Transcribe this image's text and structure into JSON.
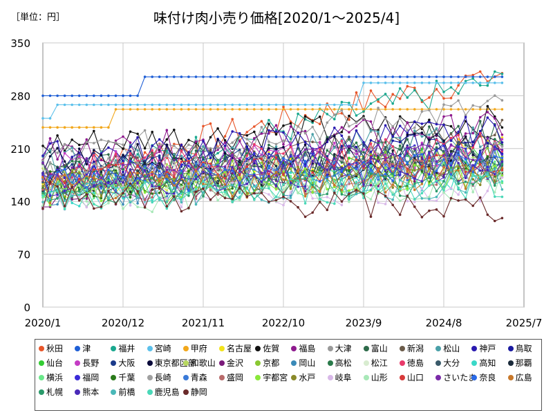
{
  "unit_label": "［単位：円］",
  "title": "味付け肉小売り価格[2020/1～2025/4]",
  "chart_data": {
    "type": "line",
    "title": "味付け肉小売り価格[2020/1～2025/4]",
    "ylabel": "［単位：円］",
    "xlim": [
      "2020/1",
      "2025/7"
    ],
    "ylim": [
      0,
      350
    ],
    "yticks": [
      0,
      70,
      140,
      210,
      280,
      350
    ],
    "xticks": [
      "2020/1",
      "2020/12",
      "2021/11",
      "2022/10",
      "2023/9",
      "2024/8",
      "2025/7"
    ],
    "grid": true,
    "legend_position": "bottom",
    "series": [
      {
        "name": "秋田",
        "color": "#e8562a",
        "base": 175,
        "end": 310
      },
      {
        "name": "津",
        "color": "#1f5fd6",
        "base": 280,
        "end": 305
      },
      {
        "name": "福井",
        "color": "#1aa88f",
        "base": 165,
        "end": 300
      },
      {
        "name": "宮崎",
        "color": "#5bc0eb",
        "base": 250,
        "end": 297
      },
      {
        "name": "甲府",
        "color": "#f2a71b",
        "base": 240,
        "end": 262
      },
      {
        "name": "名古屋",
        "color": "#f2e31b",
        "base": 160,
        "end": 215
      },
      {
        "name": "佐賀",
        "color": "#111111",
        "base": 215,
        "end": 248
      },
      {
        "name": "福島",
        "color": "#8e1a8e",
        "base": 205,
        "end": 240
      },
      {
        "name": "大津",
        "color": "#999999",
        "base": 200,
        "end": 265
      },
      {
        "name": "富山",
        "color": "#2e6b4a",
        "base": 175,
        "end": 230
      },
      {
        "name": "新潟",
        "color": "#6b5b4a",
        "base": 180,
        "end": 230
      },
      {
        "name": "松山",
        "color": "#4aa0a8",
        "base": 190,
        "end": 225
      },
      {
        "name": "神戸",
        "color": "#2a1ab0",
        "base": 200,
        "end": 235
      },
      {
        "name": "鳥取",
        "color": "#1a1aa0",
        "base": 170,
        "end": 220
      },
      {
        "name": "仙台",
        "color": "#33cc33",
        "base": 160,
        "end": 200
      },
      {
        "name": "長野",
        "color": "#c43cc4",
        "base": 190,
        "end": 205
      },
      {
        "name": "大阪",
        "color": "#1a3a8a",
        "base": 185,
        "end": 200
      },
      {
        "name": "東京都区部",
        "color": "#0a0a3a",
        "base": 195,
        "end": 215
      },
      {
        "name": "和歌山",
        "color": "#b8d860",
        "base": 165,
        "end": 190
      },
      {
        "name": "金沢",
        "color": "#7a1a7a",
        "base": 150,
        "end": 185
      },
      {
        "name": "京都",
        "color": "#8ac832",
        "base": 160,
        "end": 195
      },
      {
        "name": "岡山",
        "color": "#3a8ab8",
        "base": 150,
        "end": 180
      },
      {
        "name": "高松",
        "color": "#2a7a4a",
        "base": 175,
        "end": 210
      },
      {
        "name": "松江",
        "color": "#d8ecd0",
        "base": 170,
        "end": 185
      },
      {
        "name": "徳島",
        "color": "#e83a6a",
        "base": 180,
        "end": 215
      },
      {
        "name": "大分",
        "color": "#3a5a6a",
        "base": 155,
        "end": 205
      },
      {
        "name": "高知",
        "color": "#3ad8c8",
        "base": 150,
        "end": 180
      },
      {
        "name": "那覇",
        "color": "#1a2a3a",
        "base": 165,
        "end": 195
      },
      {
        "name": "横浜",
        "color": "#6ae88a",
        "base": 150,
        "end": 175
      },
      {
        "name": "福岡",
        "color": "#3a2ad8",
        "base": 170,
        "end": 200
      },
      {
        "name": "千葉",
        "color": "#2a7a1a",
        "base": 160,
        "end": 185
      },
      {
        "name": "長崎",
        "color": "#a0a0a0",
        "base": 175,
        "end": 200
      },
      {
        "name": "青森",
        "color": "#3a7ad8",
        "base": 165,
        "end": 190
      },
      {
        "name": "盛岡",
        "color": "#b86a6a",
        "base": 155,
        "end": 180
      },
      {
        "name": "宇都宮",
        "color": "#8ae83a",
        "base": 150,
        "end": 175
      },
      {
        "name": "水戸",
        "color": "#8a8a2a",
        "base": 160,
        "end": 180
      },
      {
        "name": "岐阜",
        "color": "#d8b8e8",
        "base": 145,
        "end": 160
      },
      {
        "name": "山形",
        "color": "#a8e8b8",
        "base": 140,
        "end": 165
      },
      {
        "name": "山口",
        "color": "#d83a3a",
        "base": 170,
        "end": 195
      },
      {
        "name": "さいたま",
        "color": "#7a2aa8",
        "base": 175,
        "end": 210
      },
      {
        "name": "奈良",
        "color": "#2a6ae8",
        "base": 165,
        "end": 190
      },
      {
        "name": "広島",
        "color": "#c8782a",
        "base": 155,
        "end": 175
      },
      {
        "name": "札幌",
        "color": "#2a9a6a",
        "base": 150,
        "end": 170
      },
      {
        "name": "熊本",
        "color": "#4a2ab8",
        "base": 160,
        "end": 190
      },
      {
        "name": "前橋",
        "color": "#4ab8b8",
        "base": 150,
        "end": 165
      },
      {
        "name": "鹿児島",
        "color": "#4ad8b8",
        "base": 140,
        "end": 165
      },
      {
        "name": "静岡",
        "color": "#6a2a2a",
        "base": 150,
        "end": 130
      }
    ]
  }
}
